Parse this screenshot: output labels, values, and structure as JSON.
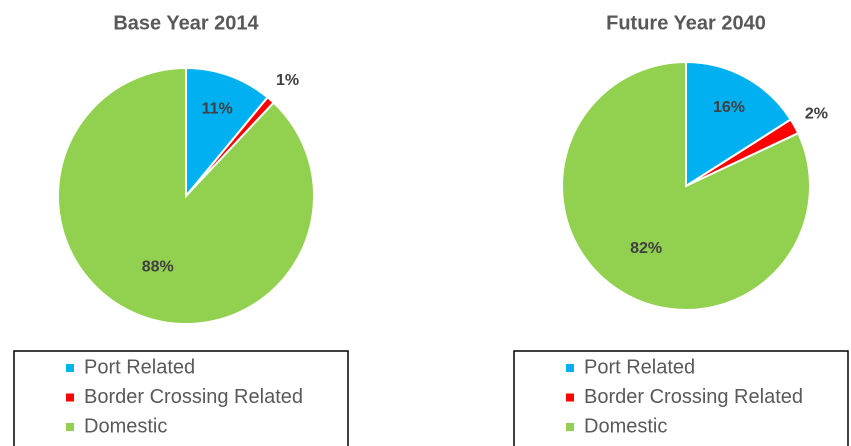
{
  "chart_data": [
    {
      "type": "pie",
      "title": "Base Year 2014",
      "categories": [
        "Port Related",
        "Border Crossing Related",
        "Domestic"
      ],
      "values": [
        11,
        1,
        88
      ],
      "value_labels": [
        "11%",
        "1%",
        "88%"
      ],
      "colors": [
        "#00b0f0",
        "#ff0000",
        "#92d050"
      ]
    },
    {
      "type": "pie",
      "title": "Future Year 2040",
      "categories": [
        "Port Related",
        "Border Crossing Related",
        "Domestic"
      ],
      "values": [
        16,
        2,
        82
      ],
      "value_labels": [
        "16%",
        "2%",
        "82%"
      ],
      "colors": [
        "#00b0f0",
        "#ff0000",
        "#92d050"
      ]
    }
  ]
}
